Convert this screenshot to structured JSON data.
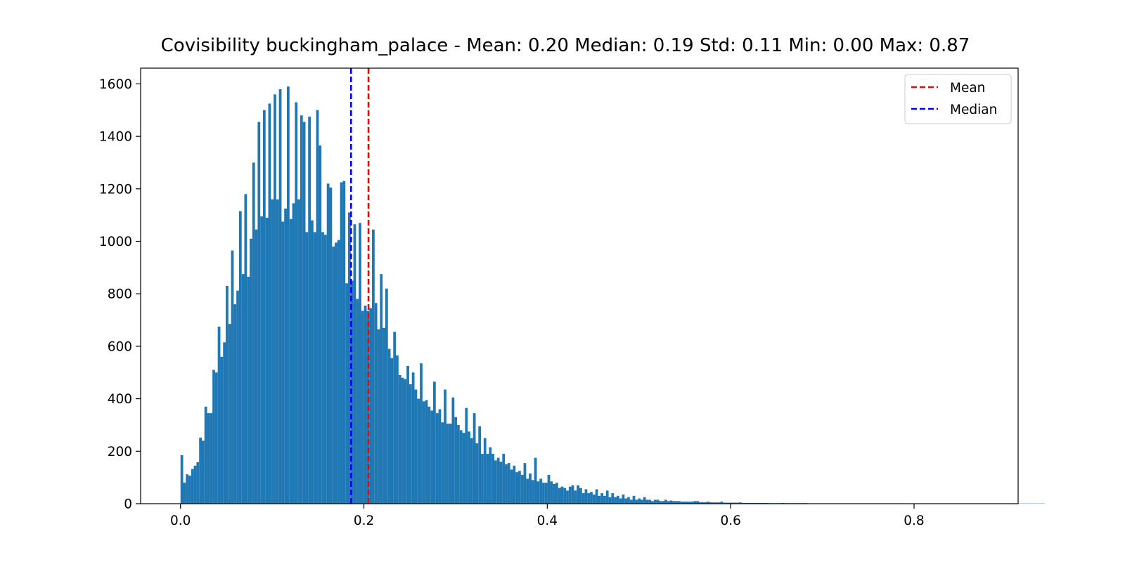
{
  "chart_data": {
    "type": "bar",
    "title": "Covisibility buckingham_palace - Mean: 0.20 Median: 0.19 Std: 0.11 Min: 0.00 Max: 0.87",
    "xlabel": "",
    "ylabel": "",
    "xlim": [
      -0.0435,
      0.9135
    ],
    "ylim": [
      0,
      1660
    ],
    "x_ticks": [
      0.0,
      0.2,
      0.4,
      0.6,
      0.8
    ],
    "x_tick_labels": [
      "0.0",
      "0.2",
      "0.4",
      "0.6",
      "0.8"
    ],
    "y_ticks": [
      0,
      200,
      400,
      600,
      800,
      1000,
      1200,
      1400,
      1600
    ],
    "y_tick_labels": [
      "0",
      "200",
      "400",
      "600",
      "800",
      "1000",
      "1200",
      "1400",
      "1600"
    ],
    "grid": false,
    "bar_color": "#1f77b4",
    "bin_start": 0.0,
    "bin_width": 0.0029,
    "values": [
      185,
      80,
      112,
      107,
      132,
      145,
      158,
      252,
      240,
      370,
      345,
      345,
      510,
      500,
      675,
      560,
      615,
      830,
      685,
      965,
      760,
      812,
      1115,
      875,
      1180,
      865,
      1010,
      1300,
      1045,
      1455,
      1095,
      1500,
      1090,
      1525,
      1160,
      1560,
      1160,
      1580,
      1075,
      1125,
      1590,
      1085,
      1145,
      1530,
      1160,
      1480,
      1455,
      1035,
      1475,
      1080,
      1035,
      1500,
      1365,
      1035,
      1025,
      1220,
      1205,
      980,
      995,
      1005,
      1225,
      1230,
      840,
      1110,
      850,
      1065,
      780,
      1070,
      735,
      755,
      735,
      745,
      1045,
      765,
      665,
      875,
      670,
      820,
      590,
      555,
      655,
      565,
      490,
      480,
      475,
      525,
      455,
      500,
      435,
      400,
      535,
      390,
      395,
      370,
      355,
      465,
      345,
      360,
      310,
      435,
      305,
      305,
      405,
      330,
      300,
      280,
      270,
      365,
      275,
      250,
      345,
      230,
      295,
      190,
      250,
      190,
      215,
      190,
      165,
      175,
      160,
      190,
      150,
      155,
      130,
      145,
      120,
      125,
      110,
      155,
      95,
      115,
      90,
      175,
      85,
      95,
      80,
      80,
      110,
      85,
      75,
      80,
      60,
      65,
      60,
      50,
      65,
      70,
      50,
      70,
      60,
      40,
      55,
      40,
      45,
      35,
      55,
      30,
      40,
      30,
      50,
      25,
      40,
      25,
      30,
      20,
      35,
      20,
      25,
      15,
      30,
      15,
      20,
      15,
      25,
      15,
      15,
      10,
      15,
      15,
      10,
      10,
      15,
      10,
      12,
      10,
      10,
      10,
      8,
      8,
      8,
      8,
      8,
      10,
      10,
      6,
      6,
      6,
      8,
      5,
      5,
      5,
      5,
      8,
      4,
      4,
      4,
      4,
      4,
      4,
      5,
      3,
      3,
      3,
      3,
      3,
      3,
      3,
      3,
      3,
      3,
      2,
      2,
      2,
      2,
      2,
      3,
      2,
      2,
      2,
      2,
      2,
      2,
      2,
      2,
      2,
      1,
      1,
      1,
      1,
      1,
      1,
      1,
      1,
      1,
      1,
      1,
      1,
      1,
      1,
      1,
      1,
      1,
      1,
      1,
      1,
      1,
      1,
      1,
      1,
      1,
      1,
      1,
      1,
      1,
      1,
      1,
      1,
      1,
      1,
      1,
      1,
      1,
      1,
      1,
      1,
      1,
      1,
      1,
      1,
      1,
      1,
      1,
      1,
      1,
      1,
      1,
      1,
      1,
      1,
      1,
      1,
      1,
      1,
      1,
      1,
      1,
      1,
      1,
      1,
      1,
      1,
      1,
      1,
      1,
      1,
      1,
      1,
      1,
      1,
      1,
      1,
      1,
      1,
      1,
      1,
      1,
      1,
      1,
      1,
      1,
      1,
      1,
      1,
      1
    ],
    "vlines": [
      {
        "name": "Mean",
        "x": 0.205,
        "color": "#ff0000",
        "style": "dashed"
      },
      {
        "name": "Median",
        "x": 0.186,
        "color": "#0000ff",
        "style": "dashed"
      }
    ],
    "legend": {
      "placement": "top-right",
      "entries": [
        {
          "label": "Mean",
          "color": "#ff0000"
        },
        {
          "label": "Median",
          "color": "#0000ff"
        }
      ]
    }
  }
}
